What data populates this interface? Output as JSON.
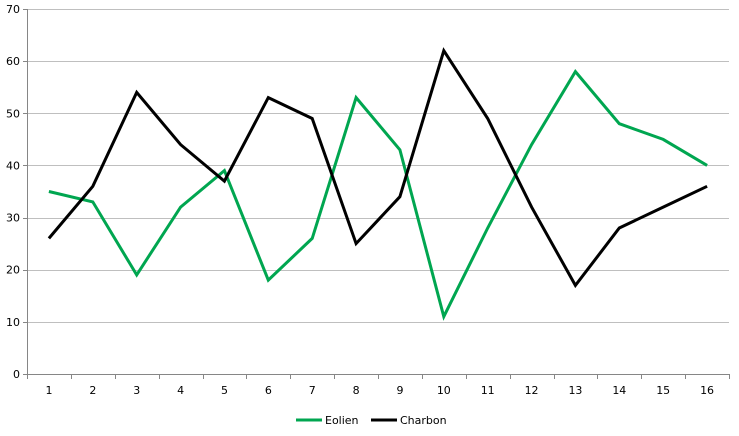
{
  "chart_data": {
    "type": "line",
    "title": "",
    "xlabel": "",
    "ylabel": "",
    "categories": [
      "1",
      "2",
      "3",
      "4",
      "5",
      "6",
      "7",
      "8",
      "9",
      "10",
      "11",
      "12",
      "13",
      "14",
      "15",
      "16"
    ],
    "ylim": [
      0,
      70
    ],
    "yticks": [
      0,
      10,
      20,
      30,
      40,
      50,
      60,
      70
    ],
    "grid": true,
    "legend": "bottom",
    "series": [
      {
        "name": "Eolien",
        "color": "#00a650",
        "values": [
          35,
          33,
          19,
          32,
          39,
          18,
          26,
          53,
          43,
          11,
          28,
          44,
          58,
          48,
          45,
          40
        ]
      },
      {
        "name": "Charbon",
        "color": "#000000",
        "values": [
          26,
          36,
          54,
          44,
          37,
          53,
          49,
          25,
          34,
          62,
          49,
          32,
          17,
          28,
          32,
          36
        ]
      }
    ]
  }
}
